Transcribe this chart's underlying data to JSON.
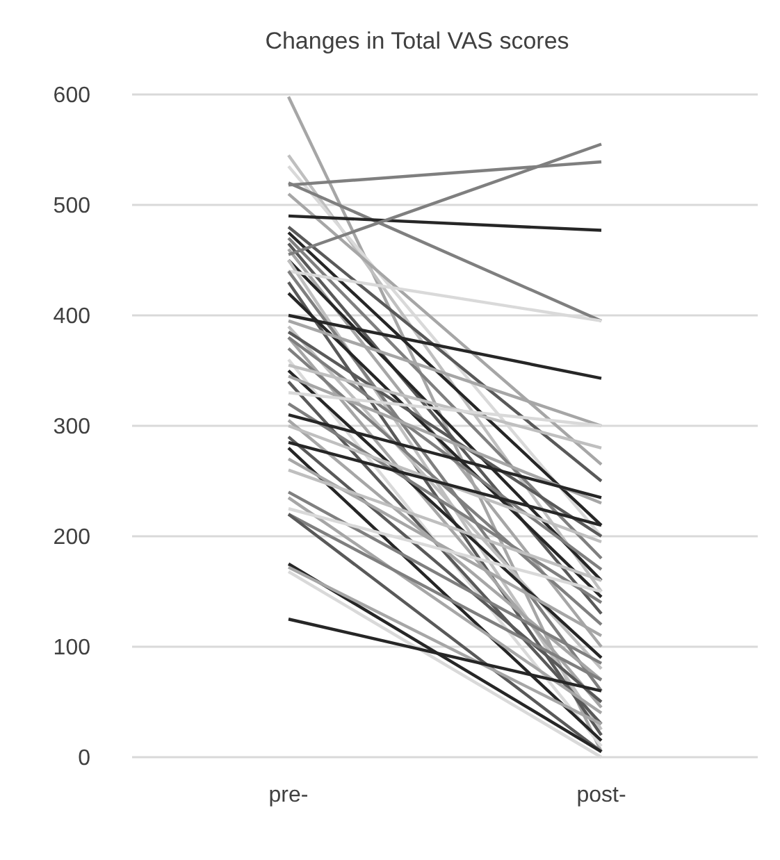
{
  "chart_data": {
    "type": "line",
    "title": "Changes in Total VAS scores",
    "categories": [
      "pre-",
      "post-"
    ],
    "ylim": [
      0,
      600
    ],
    "yticks": [
      0,
      100,
      200,
      300,
      400,
      500,
      600
    ],
    "grid": "y",
    "marker": "none",
    "line_style": "solid",
    "series": [
      {
        "color": "#a6a6a6",
        "values": [
          598,
          5
        ]
      },
      {
        "color": "#bfbfbf",
        "values": [
          545,
          150
        ]
      },
      {
        "color": "#d9d9d9",
        "values": [
          535,
          200
        ]
      },
      {
        "color": "#7f7f7f",
        "values": [
          520,
          395
        ]
      },
      {
        "color": "#7f7f7f",
        "values": [
          518,
          539
        ]
      },
      {
        "color": "#a6a6a6",
        "values": [
          510,
          265
        ]
      },
      {
        "color": "#262626",
        "values": [
          490,
          477
        ]
      },
      {
        "color": "#595959",
        "values": [
          480,
          250
        ]
      },
      {
        "color": "#262626",
        "values": [
          475,
          210
        ]
      },
      {
        "color": "#7f7f7f",
        "values": [
          470,
          180
        ]
      },
      {
        "color": "#595959",
        "values": [
          465,
          130
        ]
      },
      {
        "color": "#a6a6a6",
        "values": [
          460,
          100
        ]
      },
      {
        "color": "#7f7f7f",
        "values": [
          455,
          555
        ]
      },
      {
        "color": "#262626",
        "values": [
          450,
          160
        ]
      },
      {
        "color": "#bfbfbf",
        "values": [
          450,
          25
        ]
      },
      {
        "color": "#d9d9d9",
        "values": [
          440,
          395
        ]
      },
      {
        "color": "#7f7f7f",
        "values": [
          440,
          60
        ]
      },
      {
        "color": "#595959",
        "values": [
          430,
          20
        ]
      },
      {
        "color": "#262626",
        "values": [
          420,
          145
        ]
      },
      {
        "color": "#262626",
        "values": [
          400,
          343
        ]
      },
      {
        "color": "#a6a6a6",
        "values": [
          395,
          300
        ]
      },
      {
        "color": "#bfbfbf",
        "values": [
          390,
          80
        ]
      },
      {
        "color": "#595959",
        "values": [
          385,
          200
        ]
      },
      {
        "color": "#a6a6a6",
        "values": [
          380,
          45
        ]
      },
      {
        "color": "#7f7f7f",
        "values": [
          380,
          170
        ]
      },
      {
        "color": "#7f7f7f",
        "values": [
          370,
          120
        ]
      },
      {
        "color": "#d9d9d9",
        "values": [
          360,
          10
        ]
      },
      {
        "color": "#bfbfbf",
        "values": [
          355,
          280
        ]
      },
      {
        "color": "#262626",
        "values": [
          350,
          90
        ]
      },
      {
        "color": "#a6a6a6",
        "values": [
          345,
          230
        ]
      },
      {
        "color": "#595959",
        "values": [
          340,
          30
        ]
      },
      {
        "color": "#d9d9d9",
        "values": [
          330,
          300
        ]
      },
      {
        "color": "#7f7f7f",
        "values": [
          320,
          140
        ]
      },
      {
        "color": "#262626",
        "values": [
          310,
          235
        ]
      },
      {
        "color": "#a6a6a6",
        "values": [
          305,
          70
        ]
      },
      {
        "color": "#bfbfbf",
        "values": [
          300,
          195
        ]
      },
      {
        "color": "#595959",
        "values": [
          290,
          50
        ]
      },
      {
        "color": "#262626",
        "values": [
          285,
          210
        ]
      },
      {
        "color": "#262626",
        "values": [
          280,
          15
        ]
      },
      {
        "color": "#a6a6a6",
        "values": [
          270,
          110
        ]
      },
      {
        "color": "#bfbfbf",
        "values": [
          260,
          160
        ]
      },
      {
        "color": "#7f7f7f",
        "values": [
          240,
          85
        ]
      },
      {
        "color": "#a6a6a6",
        "values": [
          235,
          40
        ]
      },
      {
        "color": "#d9d9d9",
        "values": [
          225,
          150
        ]
      },
      {
        "color": "#7f7f7f",
        "values": [
          220,
          70
        ]
      },
      {
        "color": "#595959",
        "values": [
          220,
          5
        ]
      },
      {
        "color": "#262626",
        "values": [
          175,
          5
        ]
      },
      {
        "color": "#a6a6a6",
        "values": [
          172,
          30
        ]
      },
      {
        "color": "#d9d9d9",
        "values": [
          168,
          0
        ]
      },
      {
        "color": "#262626",
        "values": [
          125,
          60
        ]
      }
    ]
  }
}
